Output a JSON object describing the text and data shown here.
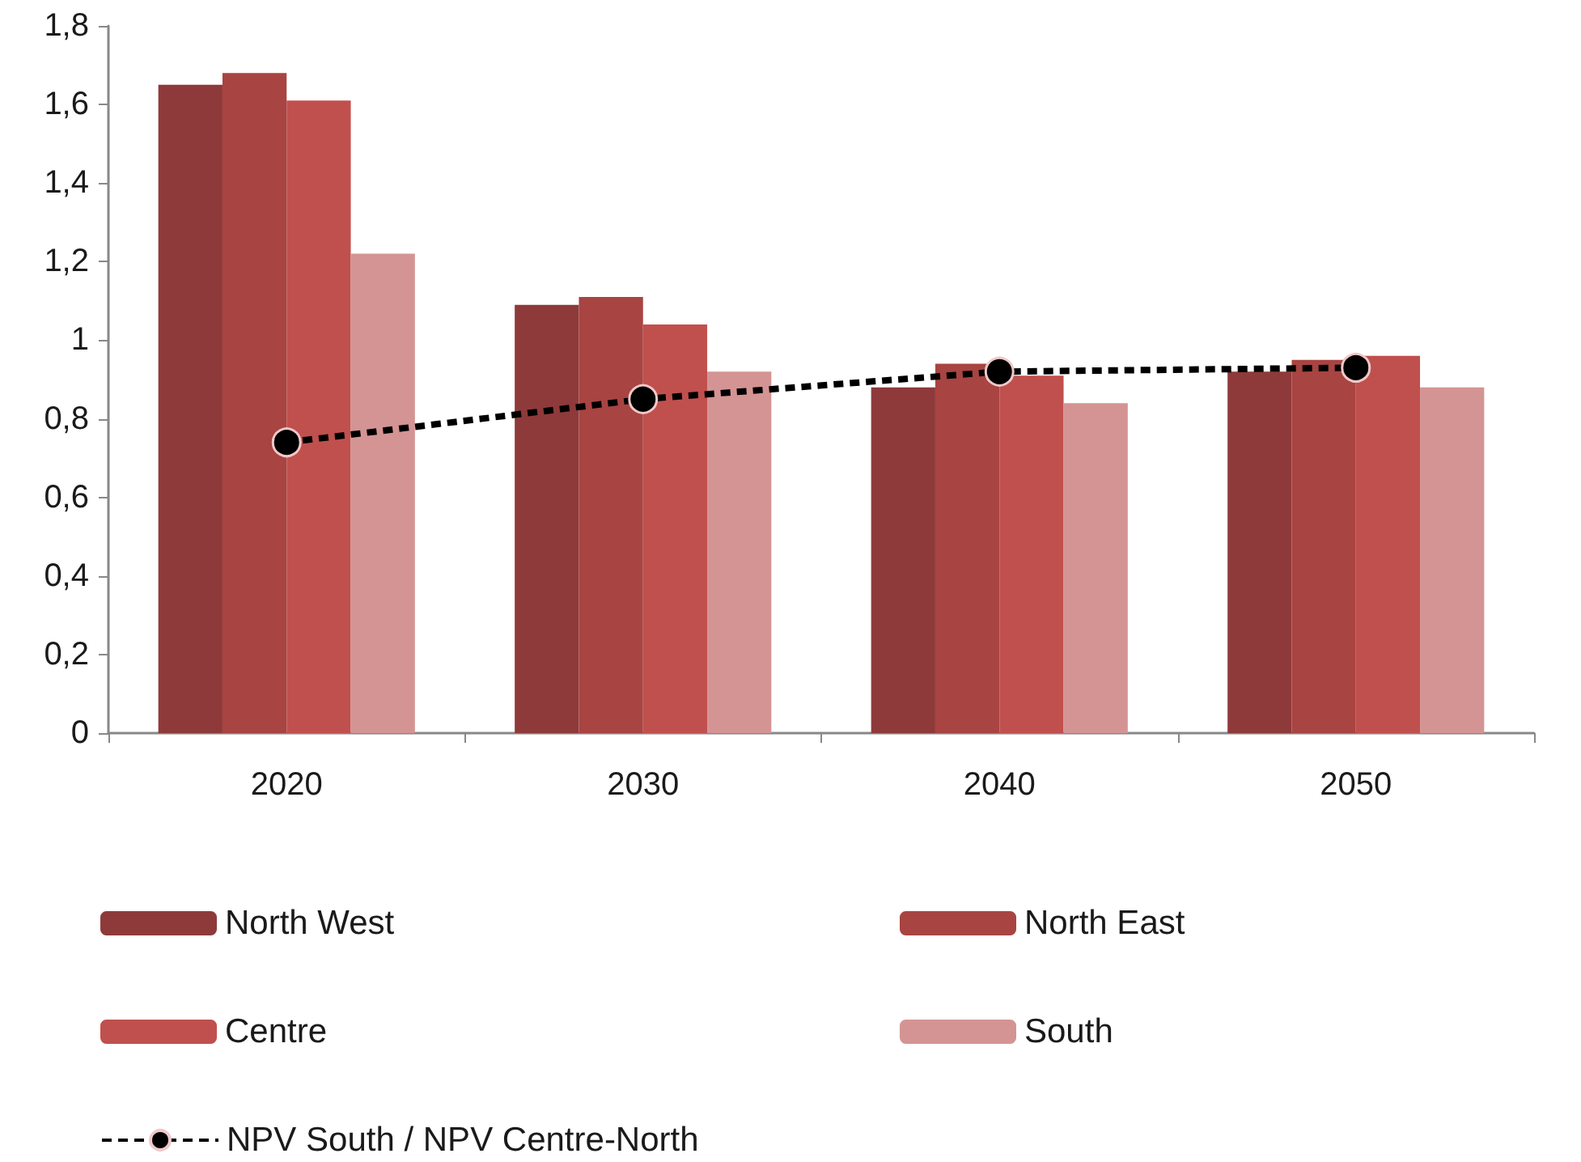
{
  "chart_data": {
    "type": "bar",
    "categories": [
      "2020",
      "2030",
      "2040",
      "2050"
    ],
    "series": [
      {
        "name": "North West",
        "color": "#8e3a3a",
        "values": [
          1.65,
          1.09,
          0.88,
          0.92
        ]
      },
      {
        "name": "North East",
        "color": "#a84442",
        "values": [
          1.68,
          1.11,
          0.94,
          0.95
        ]
      },
      {
        "name": "Centre",
        "color": "#c0504d",
        "values": [
          1.61,
          1.04,
          0.91,
          0.96
        ]
      },
      {
        "name": "South",
        "color": "#d49494",
        "values": [
          1.22,
          0.92,
          0.84,
          0.88
        ]
      },
      {
        "name": "NPV South / NPV Centre-North",
        "type": "line",
        "color": "#000000",
        "line_style": "dashed",
        "marker": "circle",
        "values": [
          0.74,
          0.85,
          0.92,
          0.93
        ]
      }
    ],
    "ylim": [
      0,
      1.8
    ],
    "yticks": [
      0,
      {
        "value": 0.2,
        "label": "0,2"
      },
      {
        "value": 0.4,
        "label": "0,4"
      },
      {
        "value": 0.6,
        "label": "0,6"
      },
      {
        "value": 0.8,
        "label": "0,8"
      },
      1,
      {
        "value": 1.2,
        "label": "1,2"
      },
      {
        "value": 1.4,
        "label": "1,4"
      },
      {
        "value": 1.6,
        "label": "1,6"
      },
      {
        "value": 1.8,
        "label": "1,8"
      }
    ],
    "grid": false,
    "legend": "bottom"
  }
}
